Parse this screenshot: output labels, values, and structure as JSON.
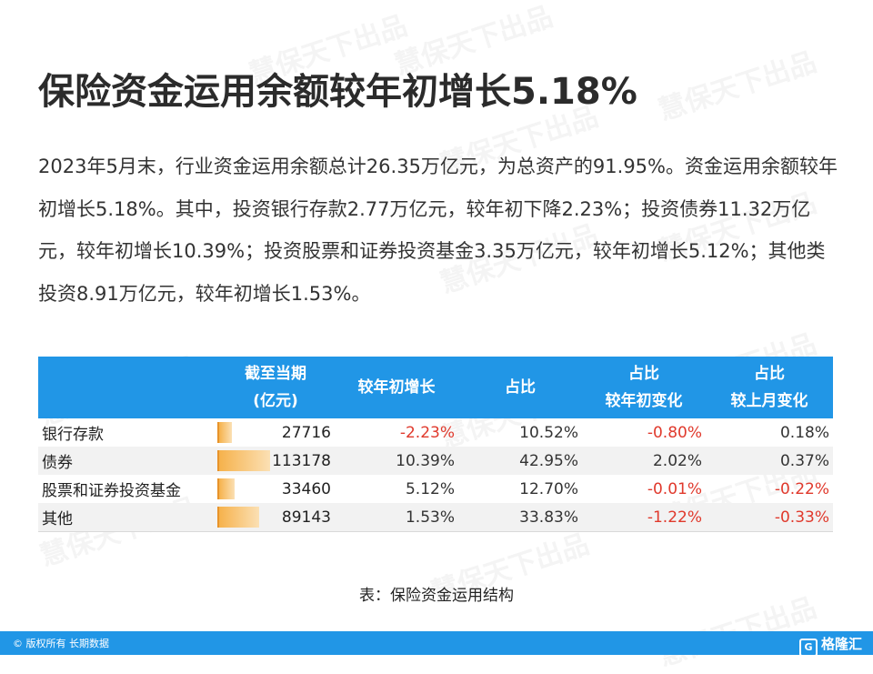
{
  "title": "保险资金运用余额较年初增长5.18%",
  "paragraph": "2023年5月末，行业资金运用余额总计26.35万亿元，为总资产的91.95%。资金运用余额较年初增长5.18%。其中，投资银行存款2.77万亿元，较年初下降2.23%；投资债券11.32万亿元，较年初增长10.39%；投资股票和证券投资基金3.35万亿元，较年初增长5.12%；其他类投资8.91万亿元，较年初增长1.53%。",
  "watermark": "慧保天下出品",
  "table": {
    "headers": {
      "col1_line1": "截至当期",
      "col1_line2": "(亿元)",
      "col2": "较年初增长",
      "col3": "占比",
      "col4_line1": "占比",
      "col4_line2": "较年初变化",
      "col5_line1": "占比",
      "col5_line2": "较上月变化"
    },
    "rows": [
      {
        "name": "银行存款",
        "amount": "27716",
        "amount_value": 27716,
        "growth": "-2.23%",
        "share": "10.52%",
        "share_ytd": "-0.80%",
        "share_mom": "0.18%"
      },
      {
        "name": "债券",
        "amount": "113178",
        "amount_value": 113178,
        "growth": "10.39%",
        "share": "42.95%",
        "share_ytd": "2.02%",
        "share_mom": "0.37%"
      },
      {
        "name": "股票和证券投资基金",
        "amount": "33460",
        "amount_value": 33460,
        "growth": "5.12%",
        "share": "12.70%",
        "share_ytd": "-0.01%",
        "share_mom": "-0.22%"
      },
      {
        "name": "其他",
        "amount": "89143",
        "amount_value": 89143,
        "growth": "1.53%",
        "share": "33.83%",
        "share_ytd": "-1.22%",
        "share_mom": "-0.33%"
      }
    ]
  },
  "caption": "表：保险资金运用结构",
  "footer": {
    "copyright": "© 版权所有 长期数据",
    "brand": "格隆汇",
    "brand_icon": "G"
  },
  "colors": {
    "header_blue": "#2196e6",
    "negative_red": "#e0392c",
    "bar_orange": "#f6b24c"
  }
}
